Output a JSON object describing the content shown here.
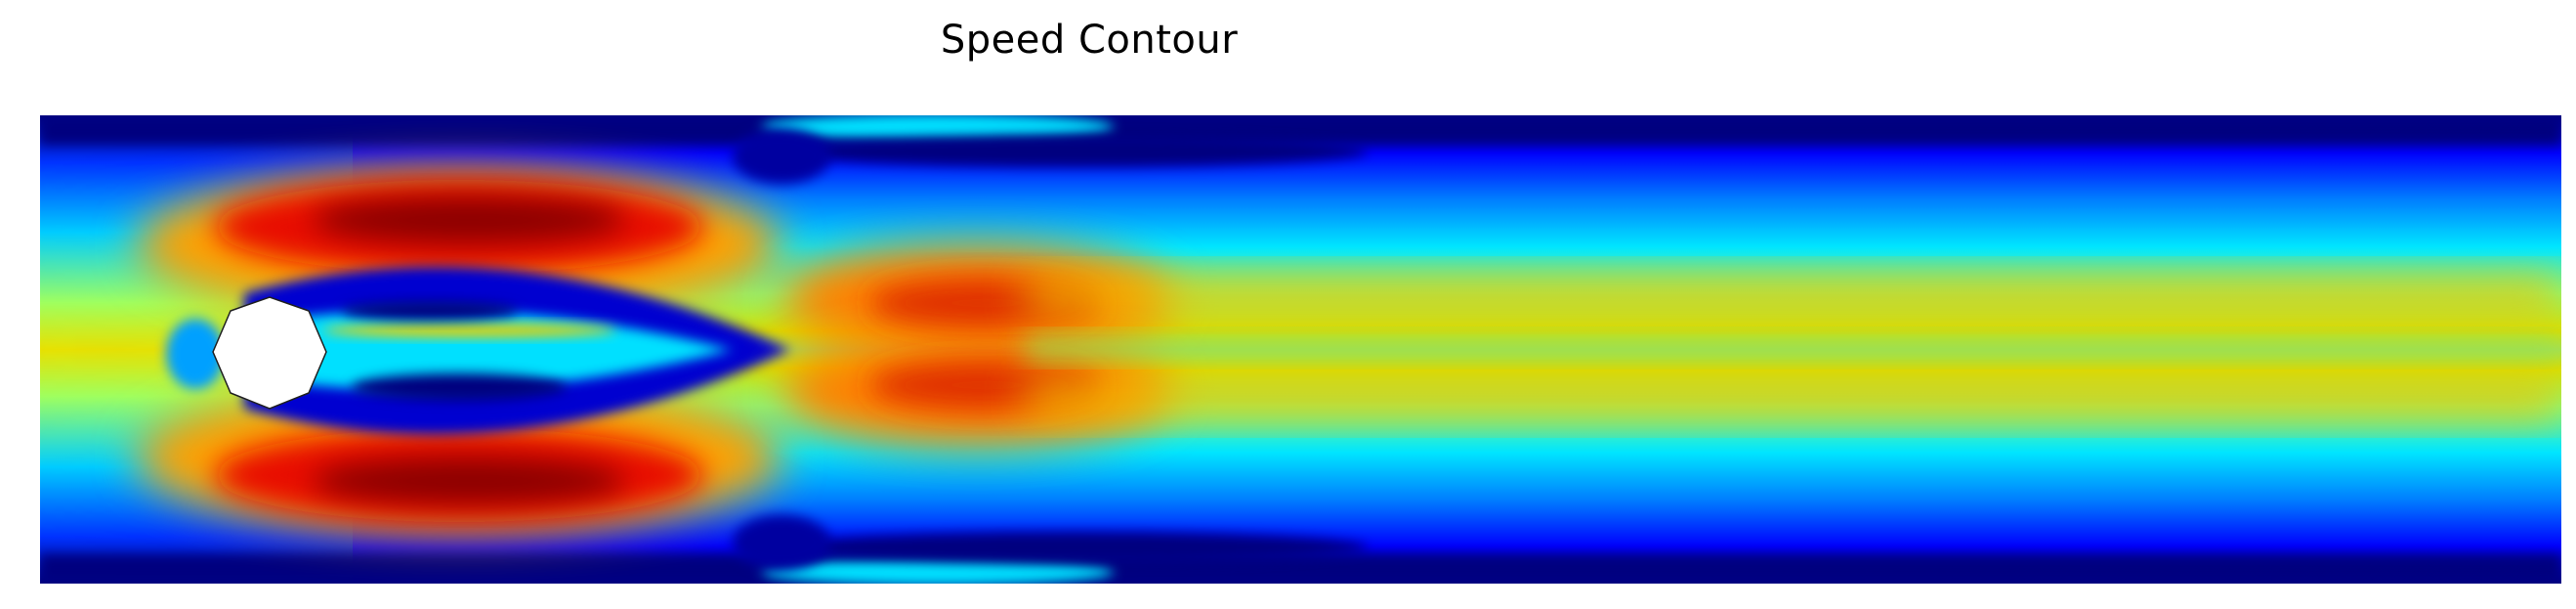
{
  "chart_data": {
    "type": "heatmap",
    "title": "Speed Contour",
    "xlabel": "",
    "ylabel": "",
    "colormap": "jet",
    "colormap_stops": [
      "#00007f",
      "#0000ff",
      "#007fff",
      "#00ffff",
      "#7fff7f",
      "#ffff00",
      "#ff7f00",
      "#ff0000",
      "#7f0000"
    ],
    "obstacle": {
      "shape": "octagon",
      "fill": "#ffffff"
    },
    "grid": false,
    "legend": "none"
  }
}
